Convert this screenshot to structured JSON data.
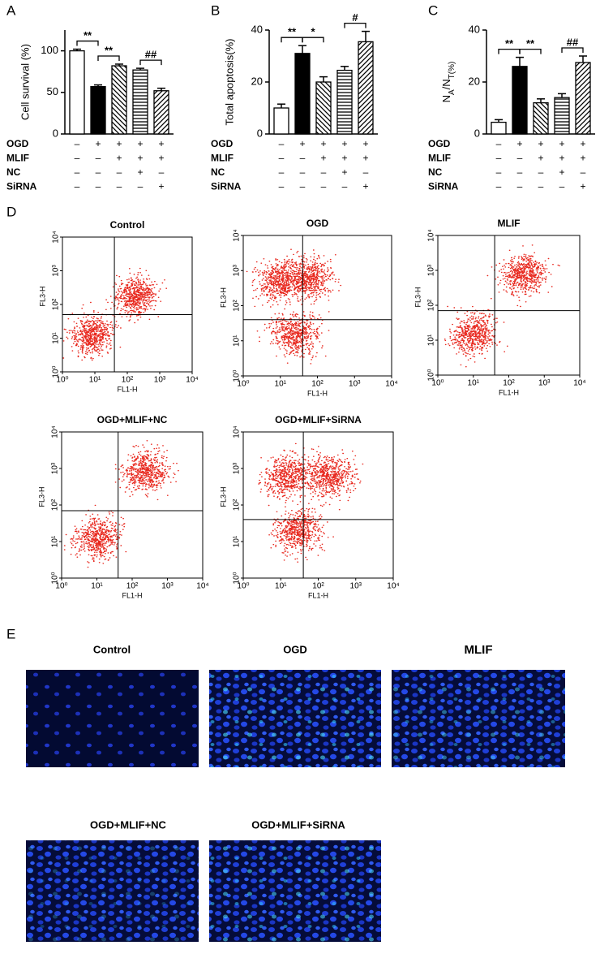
{
  "chart_data": [
    {
      "type": "bar",
      "panel": "A",
      "ylabel": "Cell survival (%)",
      "values": [
        100,
        57,
        82,
        77,
        52
      ],
      "errors": [
        2,
        2,
        2,
        2,
        3
      ],
      "patterns": [
        "white",
        "black",
        "hatch-back",
        "hatch-horizontal",
        "hatch-forward"
      ],
      "ylim": [
        0,
        125
      ],
      "yticks": [
        0,
        50,
        100
      ],
      "conditions": [
        {
          "name": "OGD",
          "signs": [
            "–",
            "+",
            "+",
            "+",
            "+"
          ]
        },
        {
          "name": "MLIF",
          "signs": [
            "–",
            "–",
            "+",
            "+",
            "+"
          ]
        },
        {
          "name": "NC",
          "signs": [
            "–",
            "–",
            "–",
            "+",
            "–"
          ]
        },
        {
          "name": "SiRNA",
          "signs": [
            "–",
            "–",
            "–",
            "–",
            "+"
          ]
        }
      ],
      "significance": [
        {
          "from": 0,
          "to": 1,
          "label": "**"
        },
        {
          "from": 1,
          "to": 2,
          "label": "**"
        },
        {
          "from": 3,
          "to": 4,
          "label": "##"
        }
      ]
    },
    {
      "type": "bar",
      "panel": "B",
      "ylabel": "Total apoptosis(%)",
      "values": [
        10,
        31,
        20,
        24.5,
        35.5
      ],
      "errors": [
        1.5,
        3,
        2,
        1.5,
        4
      ],
      "patterns": [
        "white",
        "black",
        "hatch-back",
        "hatch-horizontal",
        "hatch-forward"
      ],
      "ylim": [
        0,
        40
      ],
      "yticks": [
        0,
        20,
        40
      ],
      "conditions": [
        {
          "name": "OGD",
          "signs": [
            "–",
            "+",
            "+",
            "+",
            "+"
          ]
        },
        {
          "name": "MLIF",
          "signs": [
            "–",
            "–",
            "+",
            "+",
            "+"
          ]
        },
        {
          "name": "NC",
          "signs": [
            "–",
            "–",
            "–",
            "+",
            "–"
          ]
        },
        {
          "name": "SiRNA",
          "signs": [
            "–",
            "–",
            "–",
            "–",
            "+"
          ]
        }
      ],
      "significance": [
        {
          "from": 0,
          "to": 1,
          "label": "**"
        },
        {
          "from": 1,
          "to": 2,
          "label": "*"
        },
        {
          "from": 3,
          "to": 4,
          "label": "#"
        }
      ]
    },
    {
      "type": "bar",
      "panel": "C",
      "ylabel": [
        {
          "text": "N"
        },
        {
          "text": "A",
          "sub": true
        },
        {
          "text": "/N"
        },
        {
          "text": "T(%)",
          "sub": true
        }
      ],
      "values": [
        4.5,
        26,
        12,
        14,
        27.5
      ],
      "errors": [
        1,
        3.5,
        1.5,
        1.5,
        2.5
      ],
      "patterns": [
        "white",
        "black",
        "hatch-back",
        "hatch-horizontal",
        "hatch-forward"
      ],
      "ylim": [
        0,
        40
      ],
      "yticks": [
        0,
        20,
        40
      ],
      "conditions": [
        {
          "name": "OGD",
          "signs": [
            "–",
            "+",
            "+",
            "+",
            "+"
          ]
        },
        {
          "name": "MLIF",
          "signs": [
            "–",
            "–",
            "+",
            "+",
            "+"
          ]
        },
        {
          "name": "NC",
          "signs": [
            "–",
            "–",
            "–",
            "+",
            "–"
          ]
        },
        {
          "name": "SiRNA",
          "signs": [
            "–",
            "–",
            "–",
            "–",
            "+"
          ]
        }
      ],
      "significance": [
        {
          "from": 0,
          "to": 1,
          "label": "**"
        },
        {
          "from": 1,
          "to": 2,
          "label": "**"
        },
        {
          "from": 3,
          "to": 4,
          "label": "##"
        }
      ]
    },
    {
      "type": "scatter",
      "panel": "D",
      "title": "Control",
      "xlabel": "FL1-H",
      "ylabel": "FL3-H",
      "log_scale": true,
      "color": "#e8281e",
      "xlim": [
        1,
        10000
      ],
      "ylim": [
        1,
        10000
      ],
      "xticks": [
        {
          "value": 1,
          "label": "10⁰"
        },
        {
          "value": 10,
          "label": "10¹"
        },
        {
          "value": 100,
          "label": "10²"
        },
        {
          "value": 1000,
          "label": "10³"
        },
        {
          "value": 10000,
          "label": "10⁴"
        }
      ],
      "yticks": [
        {
          "value": 1,
          "label": "10⁰"
        },
        {
          "value": 10,
          "label": "10¹"
        },
        {
          "value": 100,
          "label": "10²"
        },
        {
          "value": 1000,
          "label": "10³"
        },
        {
          "value": 10000,
          "label": "10⁴"
        }
      ],
      "gate": {
        "x": 40,
        "y": 50
      },
      "clusters": [
        {
          "x": 8,
          "y": 12
        },
        {
          "x": 180,
          "y": 180
        }
      ]
    },
    {
      "type": "scatter",
      "title": "OGD",
      "xlabel": "FL1-H",
      "ylabel": "FL3-H",
      "log_scale": true,
      "color": "#e8281e",
      "xlim": [
        1,
        10000
      ],
      "ylim": [
        1,
        10000
      ],
      "xticks": [
        {
          "value": 1,
          "label": "10⁰"
        },
        {
          "value": 10,
          "label": "10¹"
        },
        {
          "value": 100,
          "label": "10²"
        },
        {
          "value": 1000,
          "label": "10³"
        },
        {
          "value": 10000,
          "label": "10⁴"
        }
      ],
      "yticks": [
        {
          "value": 1,
          "label": "10⁰"
        },
        {
          "value": 10,
          "label": "10¹"
        },
        {
          "value": 100,
          "label": "10²"
        },
        {
          "value": 1000,
          "label": "10³"
        },
        {
          "value": 10000,
          "label": "10⁴"
        }
      ],
      "gate": {
        "x": 40,
        "y": 40
      },
      "clusters": [
        {
          "x": 25,
          "y": 15
        },
        {
          "x": 60,
          "y": 600
        },
        {
          "x": 10,
          "y": 500
        }
      ]
    },
    {
      "type": "scatter",
      "title": "MLIF",
      "xlabel": "FL1-H",
      "ylabel": "FL3-H",
      "log_scale": true,
      "color": "#e8281e",
      "xlim": [
        1,
        10000
      ],
      "ylim": [
        1,
        10000
      ],
      "xticks": [
        {
          "value": 1,
          "label": "10⁰"
        },
        {
          "value": 10,
          "label": "10¹"
        },
        {
          "value": 100,
          "label": "10²"
        },
        {
          "value": 1000,
          "label": "10³"
        },
        {
          "value": 10000,
          "label": "10⁴"
        }
      ],
      "yticks": [
        {
          "value": 1,
          "label": "10⁰"
        },
        {
          "value": 10,
          "label": "10¹"
        },
        {
          "value": 100,
          "label": "10²"
        },
        {
          "value": 1000,
          "label": "10³"
        },
        {
          "value": 10000,
          "label": "10⁴"
        }
      ],
      "gate": {
        "x": 40,
        "y": 70
      },
      "clusters": [
        {
          "x": 10,
          "y": 15
        },
        {
          "x": 250,
          "y": 800
        }
      ]
    },
    {
      "type": "scatter",
      "title": "OGD+MLIF+NC",
      "xlabel": "FL1-H",
      "ylabel": "FL3-H",
      "log_scale": true,
      "color": "#e8281e",
      "xlim": [
        1,
        10000
      ],
      "ylim": [
        1,
        10000
      ],
      "xticks": [
        {
          "value": 1,
          "label": "10⁰"
        },
        {
          "value": 10,
          "label": "10¹"
        },
        {
          "value": 100,
          "label": "10²"
        },
        {
          "value": 1000,
          "label": "10³"
        },
        {
          "value": 10000,
          "label": "10⁴"
        }
      ],
      "yticks": [
        {
          "value": 1,
          "label": "10⁰"
        },
        {
          "value": 10,
          "label": "10¹"
        },
        {
          "value": 100,
          "label": "10²"
        },
        {
          "value": 1000,
          "label": "10³"
        },
        {
          "value": 10000,
          "label": "10⁴"
        }
      ],
      "gate": {
        "x": 40,
        "y": 70
      },
      "clusters": [
        {
          "x": 10,
          "y": 12
        },
        {
          "x": 250,
          "y": 800
        }
      ]
    },
    {
      "type": "scatter",
      "title": "OGD+MLIF+SiRNA",
      "xlabel": "FL1-H",
      "ylabel": "FL3-H",
      "log_scale": true,
      "color": "#e8281e",
      "xlim": [
        1,
        10000
      ],
      "ylim": [
        1,
        10000
      ],
      "xticks": [
        {
          "value": 1,
          "label": "10⁰"
        },
        {
          "value": 10,
          "label": "10¹"
        },
        {
          "value": 100,
          "label": "10²"
        },
        {
          "value": 1000,
          "label": "10³"
        },
        {
          "value": 10000,
          "label": "10⁴"
        }
      ],
      "yticks": [
        {
          "value": 1,
          "label": "10⁰"
        },
        {
          "value": 10,
          "label": "10¹"
        },
        {
          "value": 100,
          "label": "10²"
        },
        {
          "value": 1000,
          "label": "10³"
        },
        {
          "value": 10000,
          "label": "10⁴"
        }
      ],
      "gate": {
        "x": 40,
        "y": 40
      },
      "clusters": [
        {
          "x": 30,
          "y": 20
        },
        {
          "x": 200,
          "y": 600
        },
        {
          "x": 15,
          "y": 600
        }
      ]
    }
  ],
  "fluorescence": {
    "panel": "E",
    "titles": [
      "Control",
      "OGD",
      "MLIF",
      "OGD+MLIF+NC",
      "OGD+MLIF+SiRNA"
    ]
  }
}
